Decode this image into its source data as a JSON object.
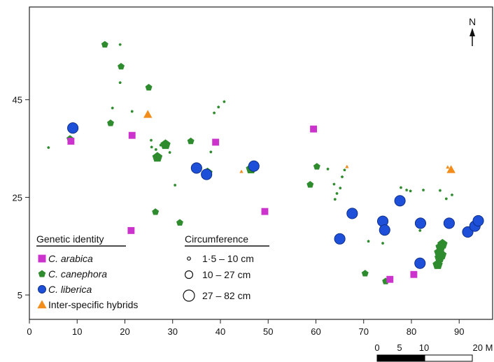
{
  "chart_data": {
    "type": "scatter",
    "xlim": [
      0,
      97
    ],
    "ylim": [
      0,
      64
    ],
    "x_ticks": [
      0,
      10,
      20,
      30,
      40,
      50,
      60,
      70,
      80,
      90
    ],
    "y_ticks": [
      5,
      25,
      45
    ],
    "y_tick_labels": [
      "5",
      "25",
      "45"
    ],
    "grid": false,
    "north_label": "N",
    "scale_bar": {
      "labels": [
        "0",
        "5",
        "10",
        "20 M"
      ]
    },
    "colors": {
      "arabica": "#cc33cc",
      "canephora": "#2e8b2e",
      "liberica": "#1d4fd8",
      "hybrid": "#f28c1a"
    },
    "legend_genetic": {
      "title": "Genetic identity",
      "entries": [
        {
          "key": "arabica",
          "label": "C. arabica",
          "italic": true,
          "shape": "square"
        },
        {
          "key": "canephora",
          "label": "C. canephora",
          "italic": true,
          "shape": "pentagon"
        },
        {
          "key": "liberica",
          "label": "C. liberica",
          "italic": true,
          "shape": "circle"
        },
        {
          "key": "hybrid",
          "label": "Inter-specific hybrids",
          "italic": false,
          "shape": "triangle"
        }
      ]
    },
    "legend_size": {
      "title": "Circumference",
      "entries": [
        {
          "label": "1·5 – 10 cm",
          "size": "small"
        },
        {
          "label": "10 – 27 cm",
          "size": "medium"
        },
        {
          "label": "27 – 82 cm",
          "size": "large"
        }
      ]
    },
    "series": [
      {
        "key": "arabica",
        "shape": "square",
        "points": [
          [
            8.7,
            36.5,
            "medium"
          ],
          [
            21.5,
            37.7,
            "medium"
          ],
          [
            21.3,
            18.2,
            "medium"
          ],
          [
            39,
            36.3,
            "medium"
          ],
          [
            49.3,
            22.1,
            "medium"
          ],
          [
            59.5,
            39,
            "medium"
          ],
          [
            75.5,
            8.2,
            "medium"
          ],
          [
            80.5,
            9.2,
            "medium"
          ]
        ]
      },
      {
        "key": "canephora",
        "shape": "pentagon",
        "points": [
          [
            4,
            35.2,
            "small"
          ],
          [
            8.5,
            37,
            "medium"
          ],
          [
            15.8,
            56.3,
            "medium"
          ],
          [
            19,
            56.3,
            "small"
          ],
          [
            19.2,
            51.8,
            "medium"
          ],
          [
            19,
            48.5,
            "small"
          ],
          [
            17.4,
            43.3,
            "small"
          ],
          [
            17,
            40.2,
            "medium"
          ],
          [
            21.5,
            42.6,
            "small"
          ],
          [
            25,
            47.5,
            "medium"
          ],
          [
            27.5,
            35.7,
            "small"
          ],
          [
            25.5,
            36.7,
            "small"
          ],
          [
            26.5,
            34.8,
            "small"
          ],
          [
            28.5,
            35.8,
            "large"
          ],
          [
            26.8,
            33.2,
            "large"
          ],
          [
            25.6,
            35.3,
            "small"
          ],
          [
            29.4,
            34.2,
            "small"
          ],
          [
            30.5,
            27.5,
            "small"
          ],
          [
            26.4,
            22,
            "medium"
          ],
          [
            31.5,
            19.8,
            "medium"
          ],
          [
            33.8,
            36.5,
            "medium"
          ],
          [
            37.3,
            30,
            "large"
          ],
          [
            38,
            34.3,
            "small"
          ],
          [
            38.7,
            42.3,
            "small"
          ],
          [
            39.6,
            43.5,
            "small"
          ],
          [
            40.8,
            44.6,
            "small"
          ],
          [
            46.4,
            30.8,
            "large"
          ],
          [
            58.8,
            27.6,
            "medium"
          ],
          [
            60.2,
            31.3,
            "medium"
          ],
          [
            62.5,
            30.8,
            "small"
          ],
          [
            64,
            24.6,
            "small"
          ],
          [
            63.8,
            27.7,
            "small"
          ],
          [
            64.4,
            25.8,
            "small"
          ],
          [
            65.1,
            26.9,
            "small"
          ],
          [
            65.5,
            29.2,
            "small"
          ],
          [
            66,
            30.6,
            "small"
          ],
          [
            71,
            16,
            "small"
          ],
          [
            74,
            15.6,
            "small"
          ],
          [
            70.3,
            9.4,
            "medium"
          ],
          [
            74.6,
            7.8,
            "medium"
          ],
          [
            79,
            26.5,
            "small"
          ],
          [
            79.8,
            26.3,
            "small"
          ],
          [
            77.8,
            27,
            "small"
          ],
          [
            81.8,
            18.2,
            "small"
          ],
          [
            82.5,
            26.5,
            "small"
          ],
          [
            85.8,
            13.7,
            "large"
          ],
          [
            86.1,
            14.8,
            "large"
          ],
          [
            85.9,
            12.6,
            "large"
          ],
          [
            86.3,
            13.2,
            "large"
          ],
          [
            86.5,
            15.4,
            "large"
          ],
          [
            85.5,
            11.2,
            "large"
          ],
          [
            86,
            26.4,
            "small"
          ],
          [
            87.3,
            24.7,
            "small"
          ],
          [
            88.5,
            25.5,
            "small"
          ]
        ]
      },
      {
        "key": "liberica",
        "shape": "circle",
        "points": [
          [
            9.1,
            39.2,
            "large"
          ],
          [
            35,
            31,
            "large"
          ],
          [
            37.1,
            29.7,
            "large"
          ],
          [
            47,
            31.4,
            "large"
          ],
          [
            65,
            16.5,
            "large"
          ],
          [
            67.6,
            21.7,
            "large"
          ],
          [
            74,
            20.1,
            "large"
          ],
          [
            74.4,
            18.3,
            "large"
          ],
          [
            77.6,
            24.3,
            "large"
          ],
          [
            81.9,
            19.7,
            "large"
          ],
          [
            81.8,
            11.5,
            "large"
          ],
          [
            87.9,
            19.7,
            "large"
          ],
          [
            91.8,
            17.9,
            "large"
          ],
          [
            93.3,
            19.1,
            "large"
          ],
          [
            94,
            20.2,
            "large"
          ]
        ]
      },
      {
        "key": "hybrid",
        "shape": "triangle",
        "points": [
          [
            24.8,
            42,
            "medium"
          ],
          [
            44.4,
            30.3,
            "small"
          ],
          [
            66.5,
            31.3,
            "small"
          ],
          [
            88.3,
            30.7,
            "medium"
          ],
          [
            87.6,
            31.2,
            "small"
          ]
        ]
      }
    ]
  }
}
